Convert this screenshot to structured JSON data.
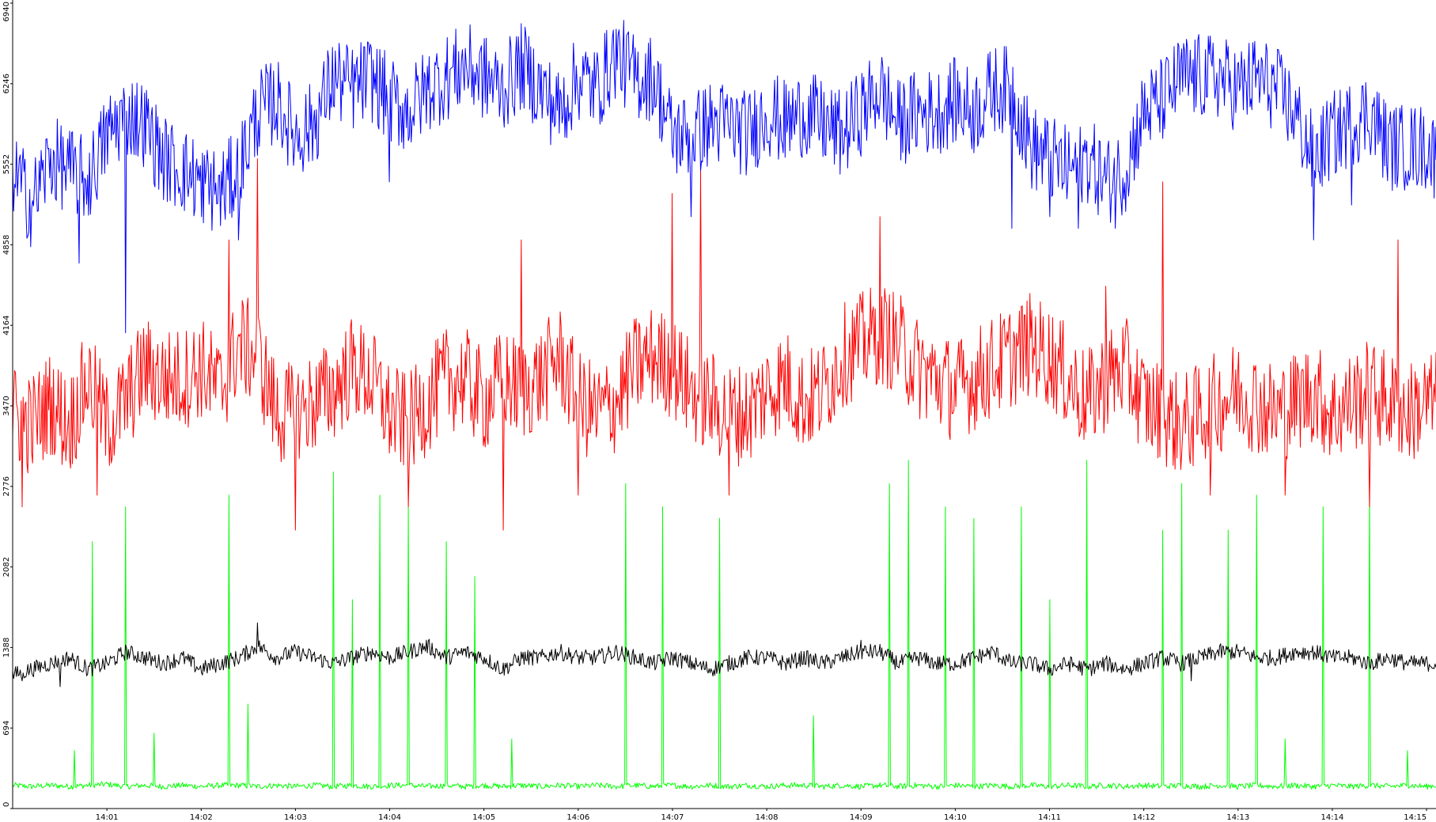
{
  "chart_data": {
    "type": "line",
    "title": "",
    "xlabel": "",
    "ylabel": "",
    "ylim": [
      0,
      6940
    ],
    "xlim_minutes": [
      0,
      15.1
    ],
    "y_ticks": [
      "0",
      "694",
      "1388",
      "2082",
      "2776",
      "3470",
      "4164",
      "4858",
      "5552",
      "6246",
      "6940"
    ],
    "x_ticks": [
      "14:01",
      "14:02",
      "14:03",
      "14:04",
      "14:05",
      "14:06",
      "14:07",
      "14:08",
      "14:09",
      "14:10",
      "14:11",
      "14:12",
      "14:13",
      "14:14",
      "14:15"
    ],
    "grid": false,
    "legend": "none",
    "x_note": "x values are minutes after 14:00",
    "series": [
      {
        "color": "#0000ff",
        "x": [
          0,
          0.2,
          0.4,
          0.6,
          0.8,
          1.0,
          1.2,
          1.4,
          1.6,
          1.8,
          2.0,
          2.2,
          2.4,
          2.6,
          2.8,
          3.0,
          3.2,
          3.4,
          3.6,
          3.8,
          4.0,
          4.2,
          4.4,
          4.6,
          4.8,
          5.0,
          5.2,
          5.4,
          5.6,
          5.8,
          6.0,
          6.2,
          6.4,
          6.6,
          6.8,
          7.0,
          7.2,
          7.4,
          7.6,
          7.8,
          8.0,
          8.2,
          8.4,
          8.6,
          8.8,
          9.0,
          9.2,
          9.4,
          9.6,
          9.8,
          10.0,
          10.2,
          10.4,
          10.6,
          10.8,
          11.0,
          11.2,
          11.4,
          11.6,
          11.8,
          12.0,
          12.2,
          12.4,
          12.6,
          12.8,
          13.0,
          13.2,
          13.4,
          13.6,
          13.8,
          14.0,
          14.2,
          14.4,
          14.6,
          14.8,
          15.0,
          15.1
        ],
        "values": [
          5500,
          5200,
          5600,
          5500,
          5400,
          5800,
          6000,
          5900,
          5600,
          5500,
          5400,
          5300,
          5500,
          6000,
          6100,
          5800,
          5900,
          6300,
          6200,
          6300,
          6100,
          6000,
          6200,
          6300,
          6400,
          6300,
          6200,
          6400,
          6200,
          6000,
          6300,
          6200,
          6500,
          6300,
          6300,
          5800,
          5800,
          5900,
          5900,
          5800,
          6000,
          5900,
          6000,
          5900,
          5800,
          6000,
          6200,
          5900,
          6000,
          6000,
          6100,
          6000,
          6200,
          6200,
          5700,
          5600,
          5500,
          5600,
          5400,
          5500,
          6000,
          6100,
          6300,
          6300,
          6300,
          6200,
          6300,
          6200,
          6000,
          5600,
          5800,
          5900,
          6000,
          5700,
          5700,
          5700,
          5600
        ],
        "spikes": [
          [
            0.7,
            4700
          ],
          [
            1.2,
            4100
          ],
          [
            2.0,
            5100
          ],
          [
            2.4,
            4900
          ],
          [
            4.0,
            5400
          ],
          [
            7.2,
            5100
          ],
          [
            10.6,
            5000
          ],
          [
            11.0,
            5100
          ],
          [
            11.3,
            5000
          ],
          [
            11.7,
            5000
          ],
          [
            13.8,
            4900
          ],
          [
            14.2,
            5200
          ]
        ]
      },
      {
        "color": "#ff0000",
        "x": [
          0,
          0.2,
          0.4,
          0.6,
          0.8,
          1.0,
          1.2,
          1.4,
          1.6,
          1.8,
          2.0,
          2.2,
          2.4,
          2.6,
          2.8,
          3.0,
          3.2,
          3.4,
          3.6,
          3.8,
          4.0,
          4.2,
          4.4,
          4.6,
          4.8,
          5.0,
          5.2,
          5.4,
          5.6,
          5.8,
          6.0,
          6.2,
          6.4,
          6.6,
          6.8,
          7.0,
          7.2,
          7.4,
          7.6,
          7.8,
          8.0,
          8.2,
          8.4,
          8.6,
          8.8,
          9.0,
          9.2,
          9.4,
          9.6,
          9.8,
          10.0,
          10.2,
          10.4,
          10.6,
          10.8,
          11.0,
          11.2,
          11.4,
          11.6,
          11.8,
          12.0,
          12.2,
          12.4,
          12.6,
          12.8,
          13.0,
          13.2,
          13.4,
          13.6,
          13.8,
          14.0,
          14.2,
          14.4,
          14.6,
          14.8,
          15.0,
          15.1
        ],
        "values": [
          3400,
          3300,
          3500,
          3300,
          3700,
          3300,
          3500,
          3800,
          3700,
          3700,
          3800,
          3600,
          4000,
          3900,
          3400,
          3400,
          3500,
          3600,
          3800,
          3700,
          3400,
          3300,
          3500,
          3700,
          3700,
          3500,
          3700,
          3600,
          3700,
          3900,
          3500,
          3400,
          3500,
          3800,
          3900,
          3800,
          3600,
          3500,
          3400,
          3400,
          3600,
          3700,
          3500,
          3600,
          3900,
          4000,
          4100,
          4000,
          3800,
          3700,
          3600,
          3700,
          3800,
          3900,
          4000,
          3900,
          3700,
          3500,
          3700,
          3800,
          3500,
          3400,
          3300,
          3400,
          3500,
          3600,
          3500,
          3400,
          3500,
          3600,
          3400,
          3500,
          3600,
          3500,
          3400,
          3500,
          3500
        ],
        "spikes": [
          [
            0.1,
            2600
          ],
          [
            0.9,
            2700
          ],
          [
            2.3,
            4900
          ],
          [
            2.6,
            5600
          ],
          [
            3.0,
            2400
          ],
          [
            4.2,
            2600
          ],
          [
            5.2,
            2400
          ],
          [
            5.4,
            4900
          ],
          [
            6.0,
            2700
          ],
          [
            7.0,
            5300
          ],
          [
            7.3,
            5500
          ],
          [
            7.6,
            2700
          ],
          [
            9.2,
            5100
          ],
          [
            11.6,
            4500
          ],
          [
            12.2,
            5400
          ],
          [
            12.7,
            2700
          ],
          [
            13.5,
            2700
          ],
          [
            14.4,
            2600
          ],
          [
            14.7,
            4900
          ]
        ]
      },
      {
        "color": "#000000",
        "x": [
          0,
          0.2,
          0.4,
          0.6,
          0.8,
          1.0,
          1.2,
          1.4,
          1.6,
          1.8,
          2.0,
          2.2,
          2.4,
          2.6,
          2.8,
          3.0,
          3.2,
          3.4,
          3.6,
          3.8,
          4.0,
          4.2,
          4.4,
          4.6,
          4.8,
          5.0,
          5.2,
          5.4,
          5.6,
          5.8,
          6.0,
          6.2,
          6.4,
          6.6,
          6.8,
          7.0,
          7.2,
          7.4,
          7.6,
          7.8,
          8.0,
          8.2,
          8.4,
          8.6,
          8.8,
          9.0,
          9.2,
          9.4,
          9.6,
          9.8,
          10.0,
          10.2,
          10.4,
          10.6,
          10.8,
          11.0,
          11.2,
          11.4,
          11.6,
          11.8,
          12.0,
          12.2,
          12.4,
          12.6,
          12.8,
          13.0,
          13.2,
          13.4,
          13.6,
          13.8,
          14.0,
          14.2,
          14.4,
          14.6,
          14.8,
          15.0,
          15.1
        ],
        "values": [
          1150,
          1200,
          1250,
          1300,
          1200,
          1250,
          1350,
          1300,
          1250,
          1300,
          1200,
          1250,
          1300,
          1400,
          1300,
          1350,
          1300,
          1250,
          1300,
          1350,
          1300,
          1350,
          1400,
          1300,
          1350,
          1300,
          1200,
          1300,
          1300,
          1350,
          1300,
          1300,
          1350,
          1300,
          1250,
          1300,
          1250,
          1200,
          1250,
          1300,
          1300,
          1250,
          1300,
          1250,
          1300,
          1350,
          1350,
          1250,
          1300,
          1250,
          1250,
          1300,
          1350,
          1250,
          1250,
          1200,
          1250,
          1200,
          1250,
          1200,
          1250,
          1300,
          1250,
          1300,
          1350,
          1350,
          1300,
          1300,
          1350,
          1350,
          1300,
          1300,
          1250,
          1300,
          1250,
          1250,
          1250
        ],
        "spikes": [
          [
            0.1,
            1100
          ],
          [
            0.5,
            1050
          ],
          [
            2.6,
            1600
          ],
          [
            9.0,
            1450
          ],
          [
            12.5,
            1100
          ]
        ]
      },
      {
        "color": "#00ff00",
        "x": [
          0,
          0.2,
          0.4,
          0.6,
          0.8,
          1.0,
          1.2,
          1.4,
          1.6,
          1.8,
          2.0,
          2.2,
          2.4,
          2.6,
          2.8,
          3.0,
          3.2,
          3.4,
          3.6,
          3.8,
          4.0,
          4.2,
          4.4,
          4.6,
          4.8,
          5.0,
          5.2,
          5.4,
          5.6,
          5.8,
          6.0,
          6.2,
          6.4,
          6.6,
          6.8,
          7.0,
          7.2,
          7.4,
          7.6,
          7.8,
          8.0,
          8.2,
          8.4,
          8.6,
          8.8,
          9.0,
          9.2,
          9.4,
          9.6,
          9.8,
          10.0,
          10.2,
          10.4,
          10.6,
          10.8,
          11.0,
          11.2,
          11.4,
          11.6,
          11.8,
          12.0,
          12.2,
          12.4,
          12.6,
          12.8,
          13.0,
          13.2,
          13.4,
          13.6,
          13.8,
          14.0,
          14.2,
          14.4,
          14.6,
          14.8,
          15.0,
          15.1
        ],
        "values": [
          200,
          190,
          200,
          190,
          200,
          210,
          190,
          200,
          190,
          200,
          190,
          200,
          200,
          190,
          200,
          190,
          200,
          190,
          200,
          190,
          200,
          200,
          190,
          200,
          190,
          200,
          190,
          200,
          190,
          200,
          190,
          200,
          190,
          200,
          190,
          200,
          190,
          200,
          190,
          200,
          190,
          200,
          200,
          190,
          200,
          190,
          200,
          190,
          200,
          190,
          200,
          190,
          200,
          190,
          200,
          190,
          200,
          190,
          200,
          190,
          200,
          190,
          200,
          190,
          200,
          190,
          200,
          190,
          200,
          190,
          200,
          190,
          200,
          190,
          200,
          190,
          200
        ],
        "spikes": [
          [
            0.65,
            500
          ],
          [
            0.85,
            2300
          ],
          [
            1.2,
            2600
          ],
          [
            1.5,
            650
          ],
          [
            2.3,
            2700
          ],
          [
            2.5,
            900
          ],
          [
            3.4,
            2900
          ],
          [
            3.6,
            1800
          ],
          [
            3.9,
            2700
          ],
          [
            4.2,
            2600
          ],
          [
            4.6,
            2300
          ],
          [
            4.9,
            2000
          ],
          [
            5.3,
            600
          ],
          [
            6.5,
            2800
          ],
          [
            6.9,
            2600
          ],
          [
            7.5,
            2500
          ],
          [
            8.5,
            800
          ],
          [
            9.3,
            2800
          ],
          [
            9.5,
            3000
          ],
          [
            9.9,
            2600
          ],
          [
            10.2,
            2500
          ],
          [
            10.7,
            2600
          ],
          [
            11.0,
            1800
          ],
          [
            11.4,
            3000
          ],
          [
            12.2,
            2400
          ],
          [
            12.4,
            2800
          ],
          [
            12.9,
            2400
          ],
          [
            13.2,
            2700
          ],
          [
            13.5,
            600
          ],
          [
            13.9,
            2600
          ],
          [
            14.4,
            2800
          ],
          [
            14.8,
            500
          ]
        ]
      }
    ]
  }
}
